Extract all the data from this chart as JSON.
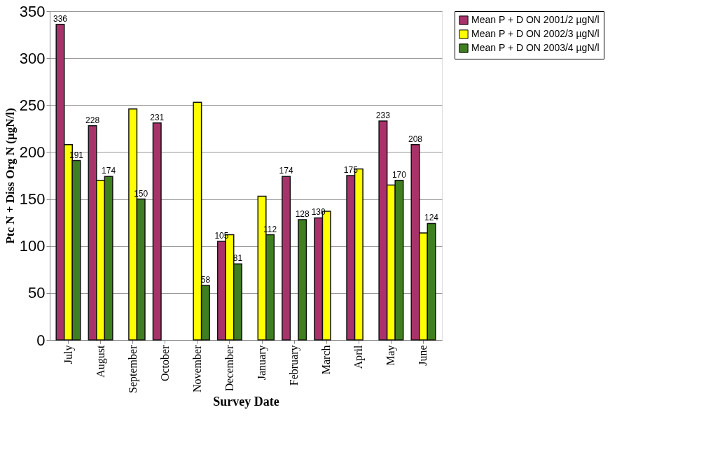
{
  "chart_data": {
    "type": "bar",
    "xlabel": "Survey Date",
    "ylabel": "Ptc N + Diss Org N (µgN/l)",
    "categories": [
      "July",
      "August",
      "September",
      "October",
      "November",
      "December",
      "January",
      "February",
      "March",
      "April",
      "May",
      "June"
    ],
    "series": [
      {
        "name": "Mean P + D ON 2001/2 µgN/l",
        "color": "#a8336a",
        "values": [
          336,
          228,
          null,
          231,
          null,
          105,
          null,
          174,
          130,
          175,
          233,
          208
        ],
        "value_labels": [
          "336",
          "228",
          null,
          "231",
          null,
          "105",
          null,
          "174",
          "130",
          "175",
          "233",
          "208"
        ]
      },
      {
        "name": "Mean P + D ON 2002/3 µgN/l",
        "color": "#ffff00",
        "values": [
          208,
          170,
          246,
          null,
          253,
          112,
          153,
          null,
          137,
          182,
          165,
          114
        ]
      },
      {
        "name": "Mean P + D ON 2003/4 µgN/l",
        "color": "#3f7f1f",
        "values": [
          191,
          174,
          150,
          null,
          58,
          81,
          112,
          128,
          null,
          null,
          170,
          124
        ],
        "value_labels": [
          "191",
          "174",
          "150",
          null,
          "58",
          "81",
          "112",
          "128",
          null,
          null,
          "170",
          "124"
        ]
      }
    ],
    "ylim": [
      0,
      350
    ],
    "yticks": [
      0,
      50,
      100,
      150,
      200,
      250,
      300,
      350
    ],
    "grid": "y",
    "legend": "right"
  }
}
